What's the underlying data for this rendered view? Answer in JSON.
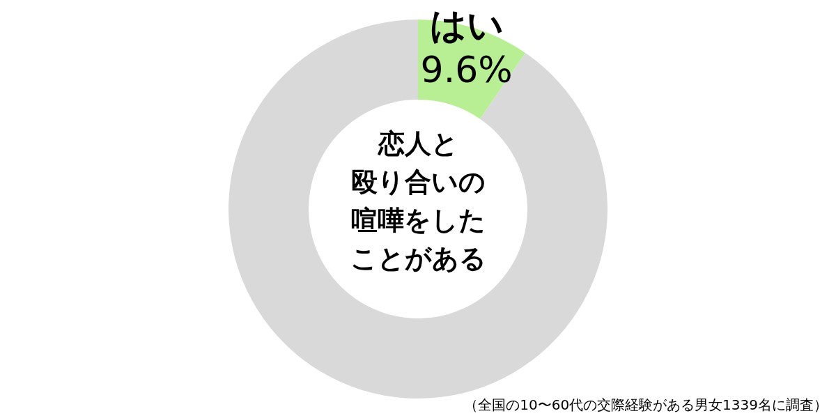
{
  "chart_data": {
    "type": "donut",
    "title": "恋人と殴り合いの喧嘩をしたことがある",
    "categories": [
      "はい",
      null
    ],
    "values": [
      9.6,
      90.4
    ],
    "colors": [
      "#b8ef94",
      "#d9d9d9"
    ],
    "value_labels": [
      "9.6%",
      null
    ],
    "annotations": [
      "（全国の10〜60代の交際経験がある男女1339名に調査）"
    ]
  }
}
